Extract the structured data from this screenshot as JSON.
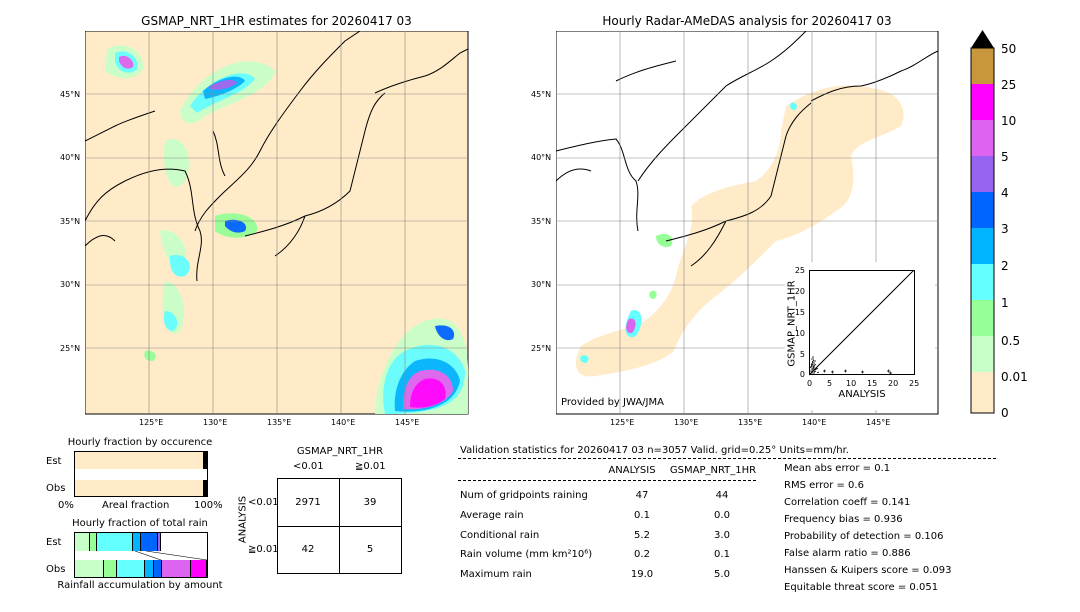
{
  "left_map": {
    "title": "GSMAP_NRT_1HR estimates for 20260417 03",
    "lat_labels": [
      "45°N",
      "40°N",
      "35°N",
      "30°N",
      "25°N"
    ],
    "lon_labels": [
      "125°E",
      "130°E",
      "135°E",
      "140°E",
      "145°E"
    ]
  },
  "right_map": {
    "title": "Hourly Radar-AMeDAS analysis for 20260417 03",
    "lat_labels": [
      "45°N",
      "40°N",
      "35°N",
      "30°N",
      "25°N"
    ],
    "lon_labels": [
      "125°E",
      "130°E",
      "135°E",
      "140°E",
      "145°E"
    ],
    "credit": "Provided by JWA/JMA"
  },
  "colorbar": {
    "labels": [
      "50",
      "25",
      "10",
      "5",
      "4",
      "3",
      "2",
      "1",
      "0.5",
      "0.01",
      "0"
    ],
    "colors": [
      "#c8963c",
      "#ff00ff",
      "#dc64f0",
      "#9664f0",
      "#0064ff",
      "#00b4ff",
      "#00e6ff",
      "#64ffff",
      "#96ff96",
      "#c8ffc8",
      "#ffebc8"
    ],
    "over_color": "#000000"
  },
  "scatter_inset": {
    "xlabel": "ANALYSIS",
    "ylabel": "GSMAP_NRT_1HR",
    "ticks": [
      "0",
      "5",
      "10",
      "15",
      "20",
      "25"
    ]
  },
  "fraction_occurrence": {
    "title": "Hourly fraction by occurence",
    "rows": [
      "Est",
      "Obs"
    ],
    "axis_left": "0%",
    "axis_mid": "Areal fraction",
    "axis_right": "100%",
    "est": [
      {
        "frac": 0.985,
        "color": "#ffebc8"
      },
      {
        "frac": 0.006,
        "color": "#c8ffc8"
      },
      {
        "frac": 0.004,
        "color": "#96ff96"
      },
      {
        "frac": 0.005,
        "color": "#000000"
      }
    ],
    "obs": [
      {
        "frac": 0.984,
        "color": "#ffebc8"
      },
      {
        "frac": 0.007,
        "color": "#c8ffc8"
      },
      {
        "frac": 0.004,
        "color": "#96ff96"
      },
      {
        "frac": 0.005,
        "color": "#000000"
      }
    ]
  },
  "fraction_total": {
    "title": "Hourly fraction of total rain",
    "rows": [
      "Est",
      "Obs"
    ],
    "footer": "Rainfall accumulation by amount",
    "est": [
      {
        "frac": 0.11,
        "color": "#c8ffc8"
      },
      {
        "frac": 0.06,
        "color": "#96ff96"
      },
      {
        "frac": 0.27,
        "color": "#64ffff"
      },
      {
        "frac": 0.06,
        "color": "#00b4ff"
      },
      {
        "frac": 0.13,
        "color": "#0064ff"
      },
      {
        "frac": 0.02,
        "color": "#9664f0"
      }
    ],
    "obs": [
      {
        "frac": 0.24,
        "color": "#c8ffc8"
      },
      {
        "frac": 0.1,
        "color": "#96ff96"
      },
      {
        "frac": 0.23,
        "color": "#64ffff"
      },
      {
        "frac": 0.08,
        "color": "#00b4ff"
      },
      {
        "frac": 0.06,
        "color": "#0064ff"
      },
      {
        "frac": 0.24,
        "color": "#dc64f0"
      },
      {
        "frac": 0.13,
        "color": "#ff00ff"
      }
    ]
  },
  "contingency": {
    "title": "GSMAP_NRT_1HR",
    "col_labels": [
      "<0.01",
      "≧0.01"
    ],
    "row_axis": "ANALYSIS",
    "row_labels": [
      "<0.01",
      "≧0.01"
    ],
    "cells": [
      [
        "2971",
        "39"
      ],
      [
        "42",
        "5"
      ]
    ]
  },
  "validation": {
    "header": "Validation statistics for 20260417 03  n=3057 Valid. grid=0.25° Units=mm/hr.",
    "col_analysis": "ANALYSIS",
    "col_gsmap": "GSMAP_NRT_1HR",
    "rows": [
      {
        "label": "Num of gridpoints raining",
        "analysis": "47",
        "gsmap": "44"
      },
      {
        "label": "Average rain",
        "analysis": "0.1",
        "gsmap": "0.0"
      },
      {
        "label": "Conditional rain",
        "analysis": "5.2",
        "gsmap": "3.0"
      },
      {
        "label": "Rain volume (mm km²10⁶)",
        "analysis": "0.2",
        "gsmap": "0.1"
      },
      {
        "label": "Maximum rain",
        "analysis": "19.0",
        "gsmap": "5.0"
      }
    ],
    "scores": [
      "Mean abs error =    0.1",
      "RMS error =    0.6",
      "Correlation coeff =  0.141",
      "Frequency bias =  0.936",
      "Probability of detection =  0.106",
      "False alarm ratio =  0.886",
      "Hanssen & Kuipers score =  0.093",
      "Equitable threat score =  0.051"
    ]
  }
}
